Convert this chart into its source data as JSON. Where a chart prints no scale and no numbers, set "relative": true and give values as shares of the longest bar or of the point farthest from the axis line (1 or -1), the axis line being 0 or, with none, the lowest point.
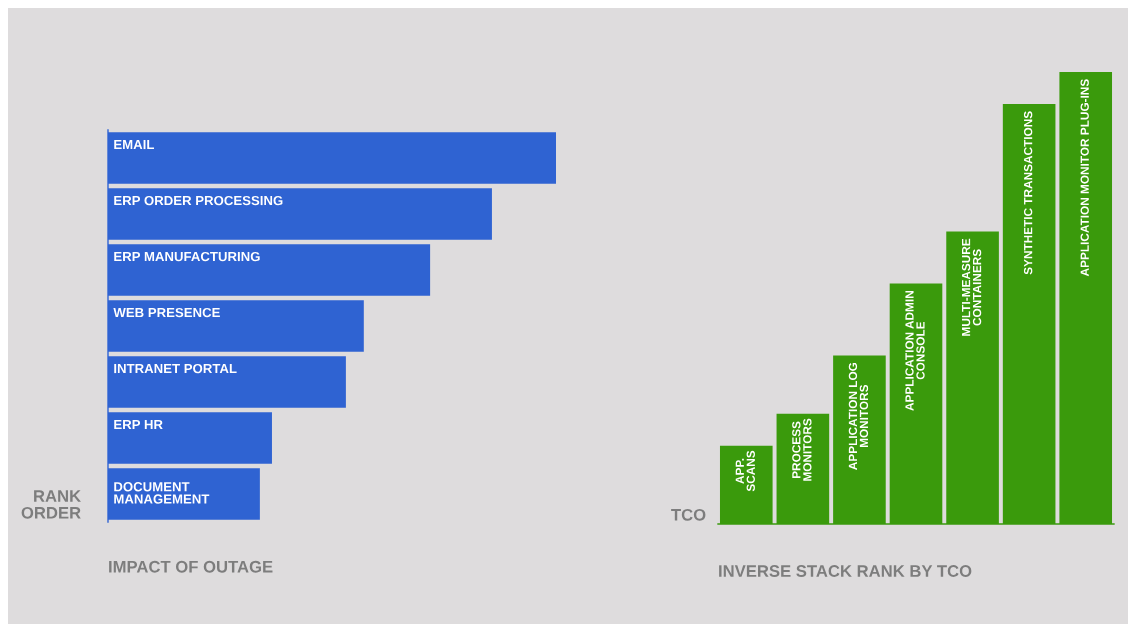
{
  "chart_data": [
    {
      "type": "bar",
      "orientation": "horizontal",
      "relative": true,
      "xlabel": "IMPACT OF OUTAGE",
      "ylabel": "RANK\nORDER",
      "categories": [
        "EMAIL",
        "ERP ORDER PROCESSING",
        "ERP MANUFACTURING",
        "WEB PRESENCE",
        "INTRANET PORTAL",
        "ERP HR",
        "DOCUMENT\nMANAGEMENT"
      ],
      "values": [
        1,
        0.857,
        0.719,
        0.571,
        0.531,
        0.366,
        0.339
      ],
      "color": "#2f63d2"
    },
    {
      "type": "bar",
      "relative": true,
      "xlabel": "INVERSE STACK RANK BY TCO",
      "ylabel": "TCO",
      "categories": [
        "APP.\nSCANS",
        "PROCESS\nMONITORS",
        "APPLICATION LOG\nMONITORS",
        "APPLICATION ADMIN\nCONSOLE",
        "MULTI-MEASURE\nCONTAINERS",
        "SYNTHETIC TRANSACTIONS",
        "APPLICATION MONITOR PLUG-INS"
      ],
      "values": [
        0.173,
        0.244,
        0.373,
        0.532,
        0.647,
        0.929,
        1
      ],
      "color": "#3a9a0c"
    }
  ]
}
